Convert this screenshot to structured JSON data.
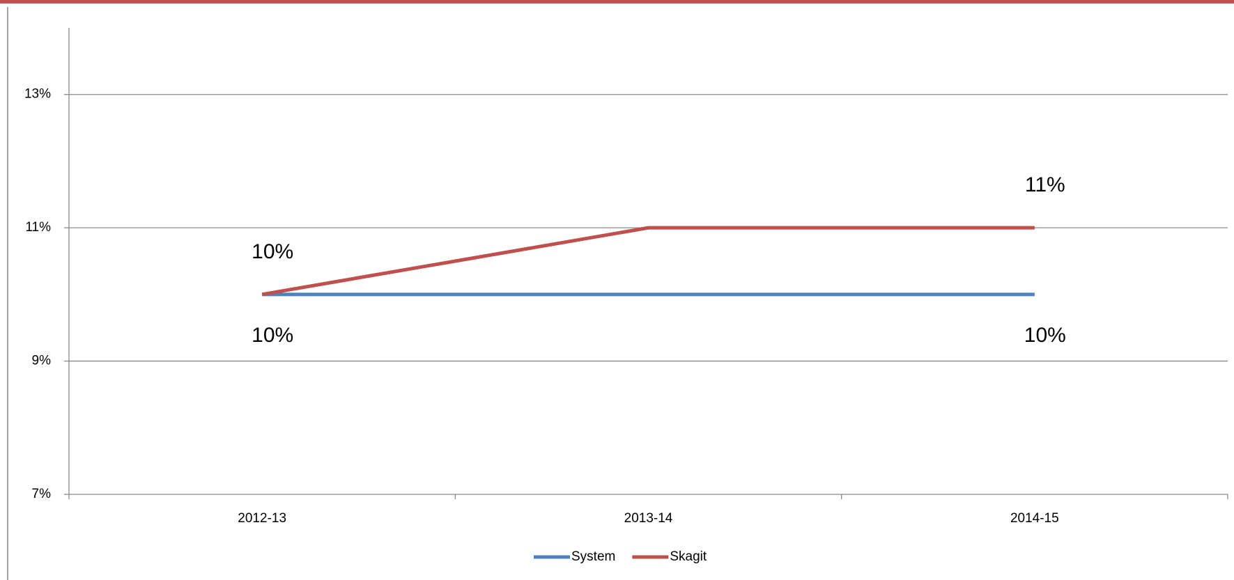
{
  "chart_data": {
    "type": "line",
    "categories": [
      "2012-13",
      "2013-14",
      "2014-15"
    ],
    "series": [
      {
        "name": "System",
        "color": "#4f81bd",
        "values": [
          10,
          10,
          10
        ],
        "value_labels": [
          "10%",
          null,
          "10%"
        ],
        "label_position": "below"
      },
      {
        "name": "Skagit",
        "color": "#c0504d",
        "values": [
          10,
          11,
          11
        ],
        "value_labels": [
          "10%",
          null,
          "11%"
        ],
        "label_position": "above"
      }
    ],
    "ylim": [
      7,
      14
    ],
    "yticks": [
      {
        "value": 7,
        "label": "7%"
      },
      {
        "value": 9,
        "label": "9%"
      },
      {
        "value": 11,
        "label": "11%"
      },
      {
        "value": 13,
        "label": "13%"
      }
    ],
    "grid": true,
    "legend": "bottom"
  }
}
